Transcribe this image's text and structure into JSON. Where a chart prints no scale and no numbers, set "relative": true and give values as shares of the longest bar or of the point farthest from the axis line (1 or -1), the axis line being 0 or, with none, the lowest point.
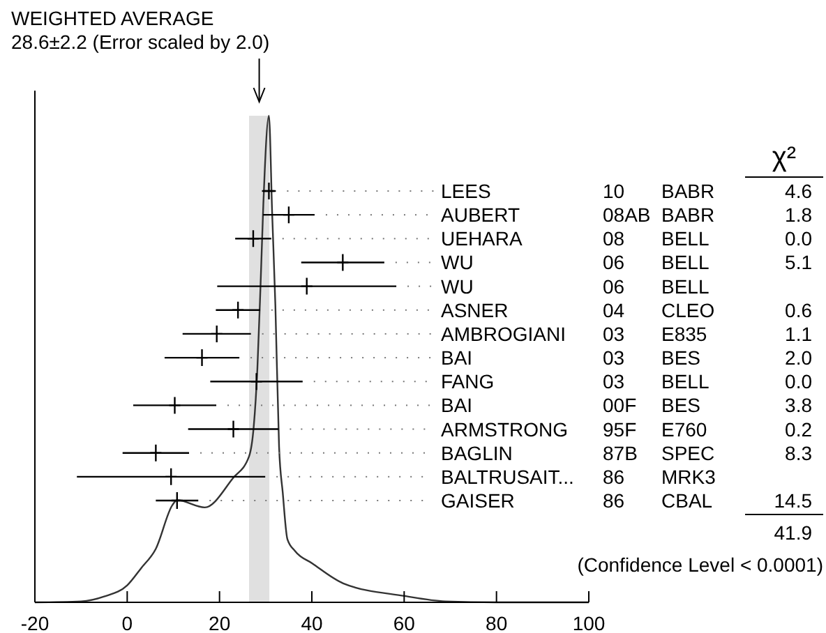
{
  "chart_data": [
    {
      "type": "line",
      "title": "WEIGHTED AVERAGE",
      "subtitle": "28.6±2.2 (Error scaled by 2.0)",
      "relative": true,
      "x": [
        -20,
        -10,
        -5,
        0,
        3,
        6.2,
        9.8,
        10.8,
        16.8,
        22.9,
        26.4,
        27.4,
        28.2,
        28.9,
        29.5,
        30.7,
        31.4,
        32.1,
        32.9,
        33.7,
        34.7,
        36.4,
        40.1,
        46.8,
        60.1,
        68.9,
        80,
        100
      ],
      "values": [
        0,
        0.002,
        0.012,
        0.035,
        0.07,
        0.11,
        0.2,
        0.21,
        0.195,
        0.255,
        0.3,
        0.36,
        0.48,
        0.655,
        0.82,
        1,
        0.8,
        0.61,
        0.32,
        0.225,
        0.13,
        0.105,
        0.08,
        0.039,
        0.013,
        0.002,
        0,
        0
      ],
      "color": "#333333",
      "tick_labels": false,
      "xlim": [
        -20,
        100
      ],
      "xticks": [
        -20,
        0,
        20,
        40,
        60,
        80,
        100
      ],
      "bands": [
        {
          "axis": "x",
          "from": 26.4,
          "to": 30.8,
          "color": "#e0e0e0"
        }
      ]
    },
    {
      "type": "scatter",
      "orientation": "horizontal",
      "marker": "cross",
      "categories": [
        "LEES",
        "AUBERT",
        "UEHARA",
        "WU",
        "WU",
        "ASNER",
        "AMBROGIANI",
        "BAI",
        "FANG",
        "BAI",
        "ARMSTRONG",
        "BAGLIN",
        "BALTRUSAIT...",
        "GAISER"
      ],
      "values": [
        30.7,
        35.0,
        27.3,
        46.7,
        38.9,
        24.0,
        19.4,
        16.2,
        28.0,
        10.3,
        23.0,
        6.2,
        9.5,
        10.8
      ],
      "errors": [
        1.5,
        5.6,
        3.9,
        9,
        19.4,
        4.8,
        7.4,
        8.1,
        10,
        9,
        9.8,
        7.2,
        20.4,
        4.6
      ],
      "color": "#000000",
      "xlim": [
        -20,
        100
      ],
      "xticks": [
        -20,
        0,
        20,
        40,
        60,
        80,
        100
      ]
    },
    {
      "type": "other",
      "annotations": [
        "χ²",
        "10 BABR 4.6",
        "08AB BABR 1.8",
        "08 BELL 0.0",
        "06 BELL 5.1",
        "06 BELL",
        "04 CLEO 0.6",
        "03 E835 1.1",
        "03 BES 2.0",
        "03 BELL 0.0",
        "00F BES 3.8",
        "95F E760 0.2",
        "87B SPEC 8.3",
        "86 MRK3",
        "86 CBAL 14.5",
        "41.9",
        "(Confidence Level < 0.0001)"
      ]
    }
  ]
}
